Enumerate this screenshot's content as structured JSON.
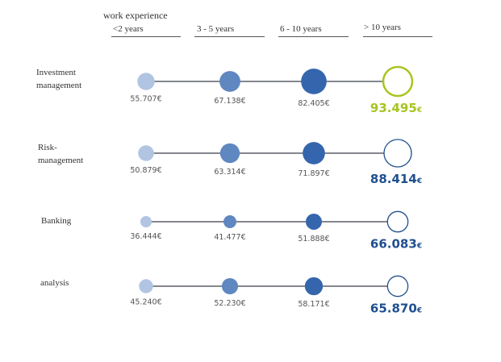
{
  "chart_data": {
    "type": "scatter",
    "title": "work experience",
    "categories": [
      "<2 years",
      "3 - 5 years",
      "6 - 10 years",
      "> 10 years"
    ],
    "currency": "€",
    "series": [
      {
        "name": "Investment management",
        "label_lines": [
          "Investment",
          "management"
        ],
        "values": [
          55707,
          67138,
          82405,
          93495
        ],
        "labels": [
          "55.707",
          "67.138",
          "82.405",
          "93.495"
        ],
        "highlight_color": "#a7c520"
      },
      {
        "name": "Risk-management",
        "label_lines": [
          "Risk-",
          "management"
        ],
        "values": [
          50879,
          63314,
          71897,
          88414
        ],
        "labels": [
          "50.879",
          "63.314",
          "71.897",
          "88.414"
        ],
        "highlight_color": "#1f4f8f"
      },
      {
        "name": "Banking",
        "label_lines": [
          "Banking"
        ],
        "values": [
          36444,
          41477,
          51888,
          66083
        ],
        "labels": [
          "36.444",
          "41.477",
          "51.888",
          "66.083"
        ],
        "highlight_color": "#1f4f8f"
      },
      {
        "name": "analysis",
        "label_lines": [
          "analysis"
        ],
        "values": [
          45240,
          52230,
          58171,
          65870
        ],
        "labels": [
          "45.240",
          "52.230",
          "58.171",
          "65.870"
        ],
        "highlight_color": "#1f4f8f"
      }
    ],
    "colors": [
      "#b1c5e3",
      "#5f87c0",
      "#3565ad",
      "#ffffff"
    ],
    "line_color": "#3a3f4a"
  }
}
